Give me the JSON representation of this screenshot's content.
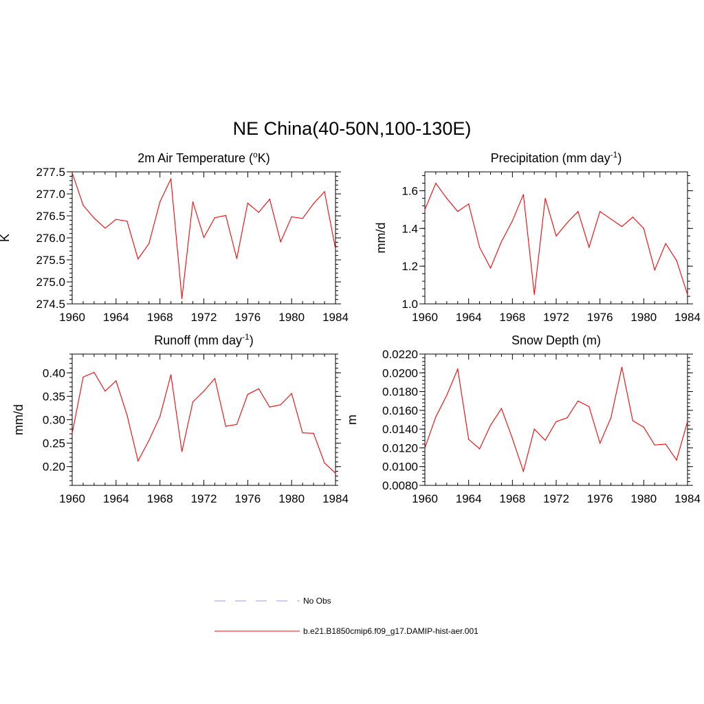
{
  "figure": {
    "title": "NE China(40-50N,100-130E)"
  },
  "legend": {
    "entries": [
      {
        "label": "No Obs",
        "color": "#9999ff",
        "style": "dashed"
      },
      {
        "label": "b.e21.B1850cmip6.f09_g17.DAMIP-hist-aer.001",
        "color": "#ff0000",
        "style": "solid"
      }
    ]
  },
  "chart_data": [
    {
      "type": "line",
      "title": "2m Air Temperature (",
      "title_sup": "o",
      "title_after": "K)",
      "ylabel": "K",
      "xlim": [
        1960,
        1984
      ],
      "ylim": [
        274.5,
        277.5
      ],
      "x_ticks": [
        1960,
        1964,
        1968,
        1972,
        1976,
        1980,
        1984
      ],
      "x_tick_labels": [
        "1960",
        "1964",
        "1968",
        "1972",
        "1976",
        "1980",
        "1984"
      ],
      "y_ticks": [
        274.5,
        275.0,
        275.5,
        276.0,
        276.5,
        277.0,
        277.5
      ],
      "y_tick_labels": [
        "274.5",
        "275.0",
        "275.5",
        "276.0",
        "276.5",
        "277.0",
        "277.5"
      ],
      "series": [
        {
          "color": "#ff0000",
          "x": [
            1960,
            1961,
            1962,
            1963,
            1964,
            1965,
            1966,
            1967,
            1968,
            1969,
            1970,
            1971,
            1972,
            1973,
            1974,
            1975,
            1976,
            1977,
            1978,
            1979,
            1980,
            1981,
            1982,
            1983,
            1984
          ],
          "values": [
            277.48,
            276.74,
            276.45,
            276.22,
            276.42,
            276.38,
            275.52,
            275.87,
            276.82,
            277.34,
            274.62,
            276.82,
            276.01,
            276.46,
            276.51,
            275.53,
            276.79,
            276.58,
            276.88,
            275.91,
            276.48,
            276.44,
            276.78,
            277.05,
            275.75
          ]
        }
      ]
    },
    {
      "type": "line",
      "title": "Precipitation (mm day",
      "title_sup": "-1",
      "title_after": ")",
      "ylabel": "mm/d",
      "xlim": [
        1960,
        1984
      ],
      "ylim": [
        1.0,
        1.7
      ],
      "x_ticks": [
        1960,
        1964,
        1968,
        1972,
        1976,
        1980,
        1984
      ],
      "x_tick_labels": [
        "1960",
        "1964",
        "1968",
        "1972",
        "1976",
        "1980",
        "1984"
      ],
      "y_ticks": [
        1.0,
        1.2,
        1.4,
        1.6
      ],
      "y_tick_labels": [
        "1.0",
        "1.2",
        "1.4",
        "1.6"
      ],
      "series": [
        {
          "color": "#ff0000",
          "x": [
            1960,
            1961,
            1962,
            1963,
            1964,
            1965,
            1966,
            1967,
            1968,
            1969,
            1970,
            1971,
            1972,
            1973,
            1974,
            1975,
            1976,
            1977,
            1978,
            1979,
            1980,
            1981,
            1982,
            1983,
            1984
          ],
          "values": [
            1.5,
            1.64,
            1.56,
            1.49,
            1.53,
            1.3,
            1.19,
            1.33,
            1.44,
            1.58,
            1.05,
            1.56,
            1.36,
            1.43,
            1.49,
            1.3,
            1.49,
            1.45,
            1.41,
            1.46,
            1.4,
            1.18,
            1.32,
            1.23,
            1.05
          ]
        }
      ]
    },
    {
      "type": "line",
      "title": "Runoff (mm day",
      "title_sup": "-1",
      "title_after": ")",
      "ylabel": "mm/d",
      "xlim": [
        1960,
        1984
      ],
      "ylim": [
        0.16,
        0.44
      ],
      "x_ticks": [
        1960,
        1964,
        1968,
        1972,
        1976,
        1980,
        1984
      ],
      "x_tick_labels": [
        "1960",
        "1964",
        "1968",
        "1972",
        "1976",
        "1980",
        "1984"
      ],
      "y_ticks": [
        0.2,
        0.25,
        0.3,
        0.35,
        0.4
      ],
      "y_tick_labels": [
        "0.20",
        "0.25",
        "0.30",
        "0.35",
        "0.40"
      ],
      "series": [
        {
          "color": "#ff0000",
          "x": [
            1960,
            1961,
            1962,
            1963,
            1964,
            1965,
            1966,
            1967,
            1968,
            1969,
            1970,
            1971,
            1972,
            1973,
            1974,
            1975,
            1976,
            1977,
            1978,
            1979,
            1980,
            1981,
            1982,
            1983,
            1984
          ],
          "values": [
            0.271,
            0.391,
            0.401,
            0.361,
            0.383,
            0.31,
            0.212,
            0.256,
            0.307,
            0.396,
            0.232,
            0.338,
            0.361,
            0.388,
            0.286,
            0.29,
            0.354,
            0.366,
            0.327,
            0.332,
            0.356,
            0.272,
            0.271,
            0.208,
            0.186
          ]
        }
      ]
    },
    {
      "type": "line",
      "title": "Snow Depth (m)",
      "title_sup": "",
      "title_after": "",
      "ylabel": "m",
      "xlim": [
        1960,
        1984
      ],
      "ylim": [
        0.008,
        0.022
      ],
      "x_ticks": [
        1960,
        1964,
        1968,
        1972,
        1976,
        1980,
        1984
      ],
      "x_tick_labels": [
        "1960",
        "1964",
        "1968",
        "1972",
        "1976",
        "1980",
        "1984"
      ],
      "y_ticks": [
        0.008,
        0.01,
        0.012,
        0.014,
        0.016,
        0.018,
        0.02,
        0.022
      ],
      "y_tick_labels": [
        "0.0080",
        "0.0100",
        "0.0120",
        "0.0140",
        "0.0160",
        "0.0180",
        "0.0200",
        "0.0220"
      ],
      "series": [
        {
          "color": "#ff0000",
          "x": [
            1960,
            1961,
            1962,
            1963,
            1964,
            1965,
            1966,
            1967,
            1968,
            1969,
            1970,
            1971,
            1972,
            1973,
            1974,
            1975,
            1976,
            1977,
            1978,
            1979,
            1980,
            1981,
            1982,
            1983,
            1984
          ],
          "values": [
            0.012,
            0.0153,
            0.0176,
            0.0204,
            0.0129,
            0.0119,
            0.0144,
            0.0162,
            0.013,
            0.0095,
            0.014,
            0.0128,
            0.0148,
            0.0152,
            0.017,
            0.0164,
            0.0125,
            0.0152,
            0.0206,
            0.0149,
            0.0142,
            0.0123,
            0.0124,
            0.0107,
            0.0148
          ]
        }
      ]
    }
  ]
}
